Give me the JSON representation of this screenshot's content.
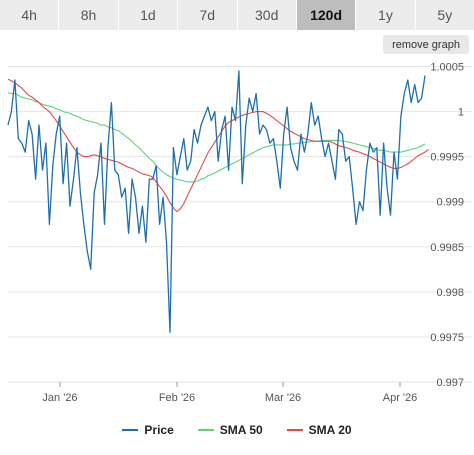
{
  "tabs": [
    {
      "label": "4h",
      "active": false
    },
    {
      "label": "8h",
      "active": false
    },
    {
      "label": "1d",
      "active": false
    },
    {
      "label": "7d",
      "active": false
    },
    {
      "label": "30d",
      "active": false
    },
    {
      "label": "120d",
      "active": true
    },
    {
      "label": "1y",
      "active": false
    },
    {
      "label": "5y",
      "active": false
    }
  ],
  "remove_graph_label": "remove graph",
  "colors": {
    "price": "#1f6fad",
    "sma50": "#5bd37a",
    "sma20": "#e24b4b"
  },
  "chart_data": {
    "type": "line",
    "x_ticks": [
      "Jan '26",
      "Feb '26",
      "Mar '26",
      "Apr '26"
    ],
    "y_ticks": [
      "0.997",
      "0.9975",
      "0.998",
      "0.9985",
      "0.999",
      "0.9995",
      "1",
      "1.0005"
    ],
    "ylim": [
      0.997,
      1.00055
    ],
    "grid": true,
    "legend_position": "bottom",
    "series": [
      {
        "name": "Price",
        "values": [
          0.99985,
          1.0,
          1.00035,
          0.9997,
          0.99965,
          0.99955,
          0.9999,
          0.99975,
          0.99925,
          0.99985,
          0.99935,
          0.99965,
          0.99875,
          0.9994,
          0.99975,
          0.99995,
          0.9992,
          0.99965,
          0.99895,
          0.99925,
          0.9996,
          0.9991,
          0.99875,
          0.99845,
          0.99825,
          0.9991,
          0.9993,
          0.99965,
          0.99875,
          0.9996,
          1.0001,
          0.99935,
          0.9993,
          0.99905,
          0.99915,
          0.99865,
          0.99925,
          0.99905,
          0.99865,
          0.99895,
          0.99855,
          0.99925,
          0.99925,
          0.9994,
          0.99875,
          0.99905,
          0.99855,
          0.99755,
          0.9996,
          0.9993,
          0.9995,
          0.9997,
          0.99935,
          0.99945,
          0.9998,
          0.99965,
          0.99985,
          0.99995,
          1.00005,
          0.9999,
          1.0,
          0.99945,
          0.9998,
          0.99995,
          0.99935,
          1.00005,
          0.9999,
          1.00045,
          0.9992,
          0.99985,
          1.00015,
          1.0,
          1.0002,
          0.99975,
          0.99985,
          0.9998,
          0.99965,
          0.9997,
          0.99945,
          0.99915,
          0.99975,
          1.00005,
          0.9996,
          0.99945,
          0.99935,
          0.99975,
          0.99955,
          0.99975,
          1.0001,
          0.99985,
          0.99995,
          0.9997,
          0.9995,
          0.99965,
          0.99945,
          0.99925,
          0.9998,
          0.99975,
          0.99945,
          0.9995,
          0.99915,
          0.99875,
          0.999,
          0.9989,
          0.99935,
          0.99965,
          0.99955,
          0.9996,
          0.99885,
          0.99965,
          0.99915,
          0.99885,
          0.99955,
          0.99925,
          0.99995,
          1.0002,
          1.00035,
          1.0001,
          1.0003,
          1.0001,
          1.00015,
          1.0004
        ]
      },
      {
        "name": "SMA 50",
        "values": [
          1.00021,
          1.0002,
          1.0002,
          1.00018,
          1.00016,
          1.00015,
          1.00014,
          1.00013,
          1.00011,
          1.0001,
          1.00008,
          1.00007,
          1.00006,
          1.00005,
          1.00003,
          1.00002,
          1.0,
          0.99999,
          0.99998,
          0.99996,
          0.99995,
          0.99993,
          0.99991,
          0.9999,
          0.99989,
          0.99988,
          0.99987,
          0.99985,
          0.99985,
          0.99983,
          0.99982,
          0.9998,
          0.99979,
          0.99976,
          0.99973,
          0.9997,
          0.99967,
          0.99963,
          0.9996,
          0.99956,
          0.99952,
          0.99948,
          0.99945,
          0.9994,
          0.99936,
          0.99933,
          0.9993,
          0.99928,
          0.99926,
          0.99925,
          0.99924,
          0.99923,
          0.99922,
          0.99922,
          0.99922,
          0.99923,
          0.99925,
          0.99926,
          0.99929,
          0.9993,
          0.99932,
          0.99934,
          0.99936,
          0.99938,
          0.9994,
          0.99942,
          0.99944,
          0.99946,
          0.99948,
          0.9995,
          0.99952,
          0.99954,
          0.99956,
          0.99958,
          0.9996,
          0.99961,
          0.99962,
          0.99963,
          0.99963,
          0.99963,
          0.99963,
          0.99963,
          0.99964,
          0.99964,
          0.99965,
          0.99965,
          0.99966,
          0.99966,
          0.99967,
          0.99967,
          0.99967,
          0.99968,
          0.99968,
          0.99968,
          0.99968,
          0.99968,
          0.99968,
          0.99967,
          0.99967,
          0.99966,
          0.99965,
          0.99964,
          0.99963,
          0.99962,
          0.99961,
          0.9996,
          0.99959,
          0.99958,
          0.99957,
          0.99957,
          0.99956,
          0.99955,
          0.99955,
          0.99955,
          0.99955,
          0.99956,
          0.99957,
          0.99958,
          0.99959,
          0.9996,
          0.99962,
          0.99964
        ]
      },
      {
        "name": "SMA 20",
        "values": [
          1.00036,
          1.00034,
          1.00032,
          1.00029,
          1.00026,
          1.00022,
          1.00018,
          1.00016,
          1.00013,
          1.0001,
          1.00006,
          1.00003,
          1.0,
          0.99995,
          0.9999,
          0.99984,
          0.99978,
          0.99972,
          0.99966,
          0.9996,
          0.99955,
          0.99952,
          0.9995,
          0.9995,
          0.99951,
          0.99952,
          0.99951,
          0.9995,
          0.99948,
          0.99947,
          0.99946,
          0.99945,
          0.99944,
          0.99942,
          0.9994,
          0.99938,
          0.99937,
          0.99935,
          0.99933,
          0.99931,
          0.9993,
          0.99929,
          0.99927,
          0.99922,
          0.99917,
          0.99912,
          0.99906,
          0.99899,
          0.99893,
          0.99889,
          0.99892,
          0.99898,
          0.99906,
          0.99914,
          0.99922,
          0.9993,
          0.99938,
          0.99946,
          0.99954,
          0.9996,
          0.99966,
          0.99972,
          0.99978,
          0.99984,
          0.99988,
          0.9999,
          0.99992,
          0.99994,
          0.99996,
          0.99997,
          0.99998,
          0.99999,
          1.0,
          1.0,
          1.0,
          0.99998,
          0.99996,
          0.99993,
          0.9999,
          0.99987,
          0.99984,
          0.99981,
          0.99978,
          0.99976,
          0.99974,
          0.99972,
          0.9997,
          0.99969,
          0.99968,
          0.99967,
          0.99967,
          0.99967,
          0.99967,
          0.99967,
          0.99966,
          0.99964,
          0.99962,
          0.99961,
          0.9996,
          0.99959,
          0.99957,
          0.99956,
          0.99955,
          0.99953,
          0.99952,
          0.9995,
          0.99948,
          0.99946,
          0.99944,
          0.99942,
          0.9994,
          0.99938,
          0.99937,
          0.99937,
          0.99938,
          0.9994,
          0.99942,
          0.99945,
          0.99948,
          0.99951,
          0.99953,
          0.99955,
          0.99958
        ]
      }
    ]
  }
}
